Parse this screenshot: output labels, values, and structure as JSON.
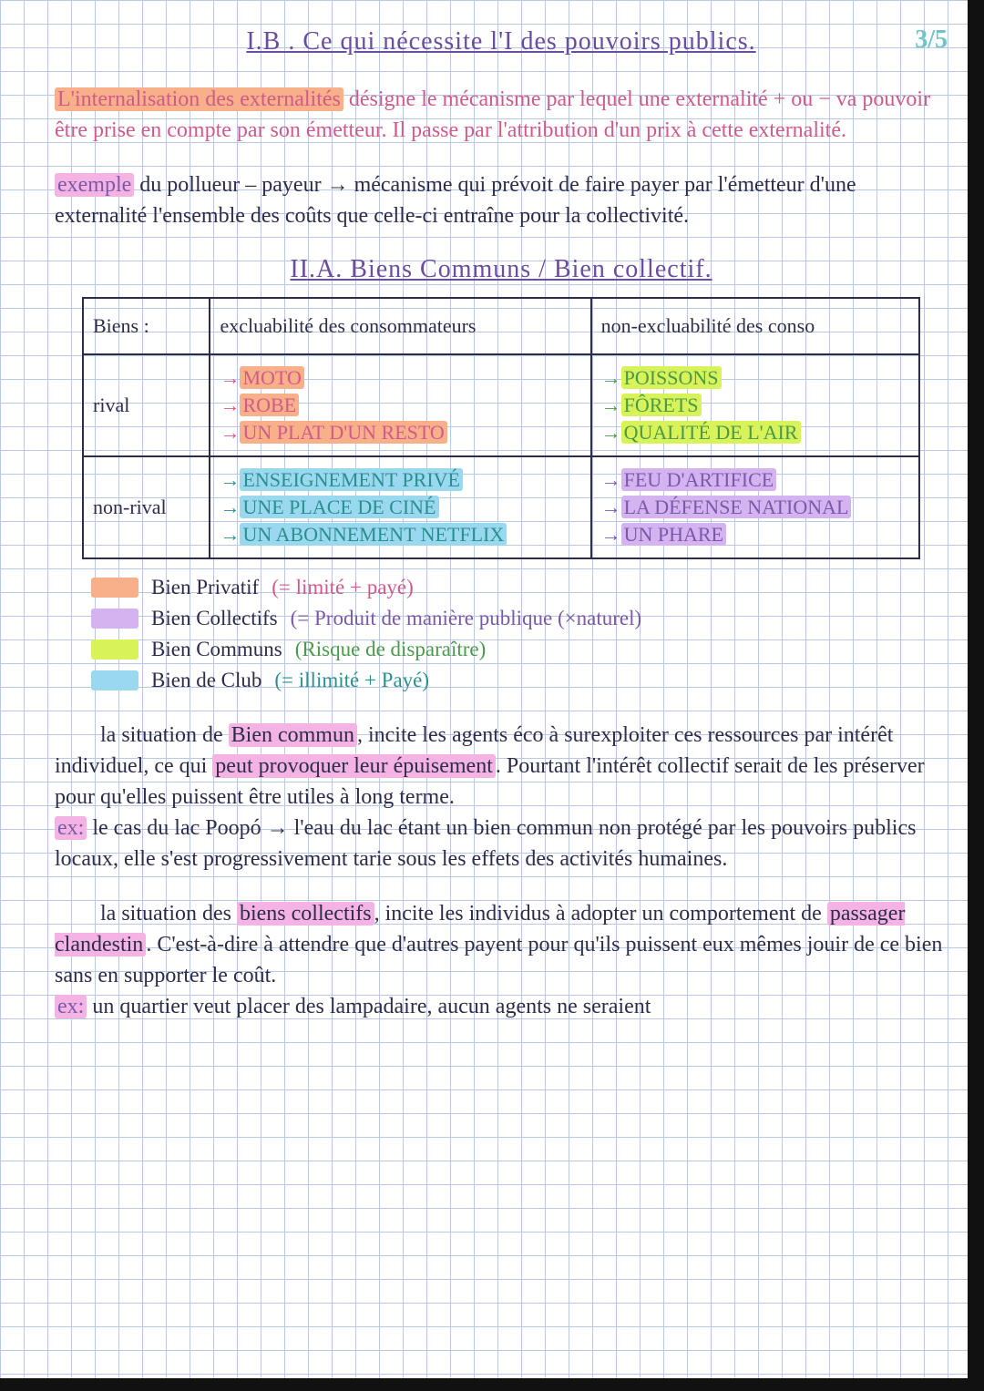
{
  "colors": {
    "page_num": "#6ec4c9",
    "heading": "#6a4da0",
    "ink_pink": "#d15a8a",
    "ink_dark": "#2d2d4a",
    "ink_teal": "#2a8f8f",
    "ink_green": "#4a9a4a",
    "ink_purple": "#7a5aa8",
    "hl_orange": "#f7b08a",
    "hl_pink": "#f4b3e2",
    "hl_yellow": "#d8f25a",
    "hl_blue": "#9ad8f0",
    "hl_violet": "#d4b3f0",
    "table_border": "#2d2d4a",
    "grid": "#b8c8e8",
    "bg": "#ffffff"
  },
  "page_number": "3/5",
  "heading1": "I.B . Ce qui nécessite l'I des pouvoirs publics.",
  "para1": {
    "hl": "L'internalisation des externalités",
    "rest": " désigne le mécanisme par lequel une externalité + ou − va pouvoir être prise en compte par son émetteur. Il passe par l'attribution d'un prix à cette externalité."
  },
  "para2": {
    "hl": "exemple",
    "rest": " du pollueur – payeur → mécanisme qui prévoit de faire payer par l'émetteur d'une externalité l'ensemble des coûts que celle-ci entraîne pour la collectivité."
  },
  "heading2": "II.A. Biens Communs / Bien collectif.",
  "table": {
    "header": {
      "c0": "Biens :",
      "c1": "excluabilité des consommateurs",
      "c2": "non-excluabilité des conso"
    },
    "rows": [
      {
        "label": "rival",
        "left": {
          "items": [
            "MOTO",
            "ROBE",
            "UN PLAT D'UN RESTO"
          ],
          "hl": "hl_orange",
          "ink": "ink_pink"
        },
        "right": {
          "items": [
            "POISSONS",
            "FÔRETS",
            "QUALITÉ DE L'AIR"
          ],
          "hl": "hl_yellow",
          "ink": "ink_green"
        }
      },
      {
        "label": "non-rival",
        "left": {
          "items": [
            "ENSEIGNEMENT PRIVÉ",
            "UNE PLACE DE CINÉ",
            "UN ABONNEMENT NETFLIX"
          ],
          "hl": "hl_blue",
          "ink": "ink_teal"
        },
        "right": {
          "items": [
            "FEU D'ARTIFICE",
            "LA DÉFENSE NATIONAL",
            "UN PHARE"
          ],
          "hl": "hl_violet",
          "ink": "ink_purple"
        }
      }
    ]
  },
  "legend": [
    {
      "swatch": "hl_orange",
      "name": "Bien Privatif",
      "note": "(= limité + payé)",
      "note_color": "ink_pink"
    },
    {
      "swatch": "hl_violet",
      "name": "Bien Collectifs",
      "note": "(= Produit de manière publique (×naturel)",
      "note_color": "ink_purple"
    },
    {
      "swatch": "hl_yellow",
      "name": "Bien Communs",
      "note": "(Risque de disparaître)",
      "note_color": "ink_green"
    },
    {
      "swatch": "hl_blue",
      "name": "Bien de Club",
      "note": "(= illimité + Payé)",
      "note_color": "ink_teal"
    }
  ],
  "para3": {
    "pre": "la situation de ",
    "hl1": "Bien commun",
    "mid1": ", incite les agents éco à surexploiter ces ressources par intérêt individuel, ce qui ",
    "hl2": "peut provoquer leur épuisement",
    "mid2": ". Pourtant l'intérêt collectif serait de les préserver pour qu'elles puissent être utiles à long terme.",
    "ex_label": "ex:",
    "ex": " le cas du lac Poopó → l'eau du lac étant un bien commun non protégé par les pouvoirs publics locaux, elle s'est progressivement tarie sous les effets des activités humaines."
  },
  "para4": {
    "pre": "la situation des ",
    "hl1": "biens collectifs",
    "mid1": ", incite les individus à adopter un comportement de ",
    "hl2": "passager clandestin",
    "mid2": ". C'est-à-dire à attendre que d'autres payent pour qu'ils puissent eux mêmes jouir de ce bien sans en supporter le coût.",
    "ex_label": "ex:",
    "ex": " un quartier veut placer des lampadaire, aucun agents ne seraient"
  }
}
